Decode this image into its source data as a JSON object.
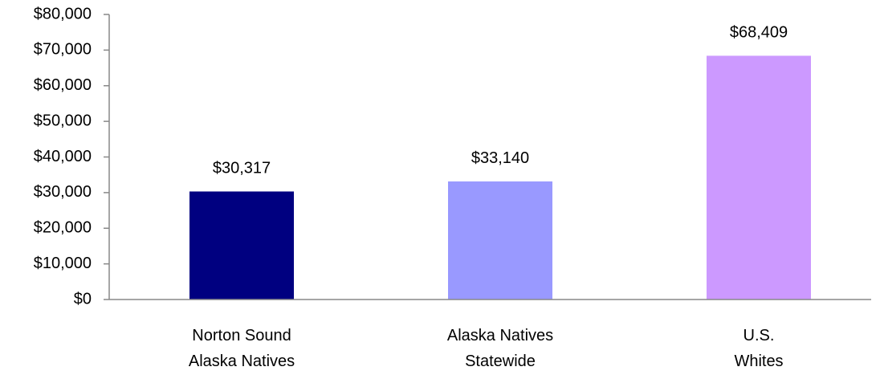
{
  "chart_data": {
    "type": "bar",
    "categories": [
      "Norton Sound\nAlaska Natives",
      "Alaska Natives\nStatewide",
      "U.S.\nWhites"
    ],
    "values": [
      30317,
      33140,
      68409
    ],
    "value_labels": [
      "$30,317",
      "$33,140",
      "$68,409"
    ],
    "colors": [
      "#000080",
      "#9999ff",
      "#cc99ff"
    ],
    "ylim": [
      0,
      80000
    ],
    "yticks": [
      {
        "value": 0,
        "label": "$0"
      },
      {
        "value": 10000,
        "label": "$10,000"
      },
      {
        "value": 20000,
        "label": "$20,000"
      },
      {
        "value": 30000,
        "label": "$30,000"
      },
      {
        "value": 40000,
        "label": "$40,000"
      },
      {
        "value": 50000,
        "label": "$50,000"
      },
      {
        "value": 60000,
        "label": "$60,000"
      },
      {
        "value": 70000,
        "label": "$70,000"
      },
      {
        "value": 80000,
        "label": "$80,000"
      }
    ],
    "grid": false
  }
}
